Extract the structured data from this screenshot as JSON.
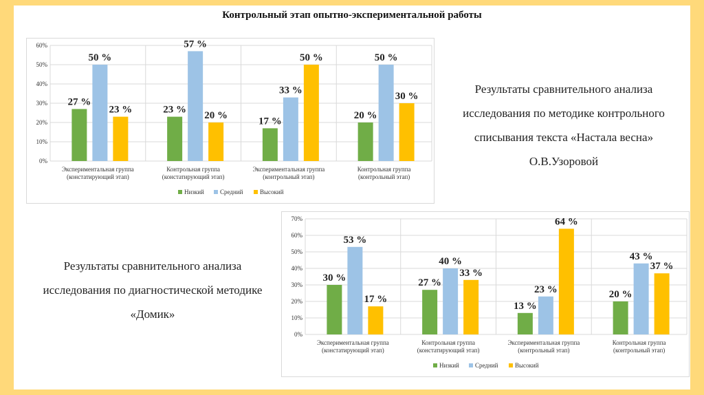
{
  "title": "Контрольный этап опытно-экспериментальной работы",
  "text_right": [
    "Результаты сравнительного анализа",
    "исследования по методике контрольного",
    "списывания текста «Настала весна»",
    "О.В.Узоровой"
  ],
  "text_left": [
    "Результаты сравнительного анализа",
    "исследования по диагностической методике",
    "«Домик»"
  ],
  "colors": {
    "low": "#70ad47",
    "mid": "#9dc3e6",
    "high": "#ffc000",
    "border": "#ffd97a"
  },
  "chart_data": [
    {
      "type": "bar",
      "categories": [
        [
          "Экспериментальная группа",
          "(констатирующий этап)"
        ],
        [
          "Контрольная группа",
          "(констатирующий этап)"
        ],
        [
          "Экспериментальная группа",
          "(контрольный этап)"
        ],
        [
          "Контрольная группа",
          "(контрольный этап)"
        ]
      ],
      "series": [
        {
          "name": "Низкий",
          "values": [
            27,
            23,
            17,
            20
          ],
          "labels": [
            "27 %",
            "23 %",
            "17 %",
            "20 %"
          ]
        },
        {
          "name": "Средний",
          "values": [
            50,
            57,
            33,
            50
          ],
          "labels": [
            "50 %",
            "57 %",
            "33 %",
            "50 %"
          ]
        },
        {
          "name": "Высокий",
          "values": [
            23,
            20,
            50,
            30
          ],
          "labels": [
            "23 %",
            "20 %",
            "50 %",
            "30 %"
          ]
        }
      ],
      "yticks": [
        "0%",
        "10%",
        "20%",
        "30%",
        "40%",
        "50%",
        "60%"
      ],
      "ylim": [
        0,
        60
      ],
      "legend": "bottom"
    },
    {
      "type": "bar",
      "categories": [
        [
          "Экспериментальная группа",
          "(констатирующий этап)"
        ],
        [
          "Контрольная группа",
          "(констатирующий этап)"
        ],
        [
          "Экспериментальная группа",
          "(контрольный этап)"
        ],
        [
          "Контрольная группа",
          "(контрольный этап)"
        ]
      ],
      "series": [
        {
          "name": "Низкий",
          "values": [
            30,
            27,
            13,
            20
          ],
          "labels": [
            "30 %",
            "27 %",
            "13 %",
            "20 %"
          ]
        },
        {
          "name": "Средний",
          "values": [
            53,
            40,
            23,
            43
          ],
          "labels": [
            "53 %",
            "40 %",
            "23 %",
            "43 %"
          ]
        },
        {
          "name": "Высокий",
          "values": [
            17,
            33,
            64,
            37
          ],
          "labels": [
            "17 %",
            "33 %",
            "64 %",
            "37 %"
          ]
        }
      ],
      "yticks": [
        "0%",
        "10%",
        "20%",
        "30%",
        "40%",
        "50%",
        "60%",
        "70%"
      ],
      "ylim": [
        0,
        70
      ],
      "legend": "bottom"
    }
  ]
}
